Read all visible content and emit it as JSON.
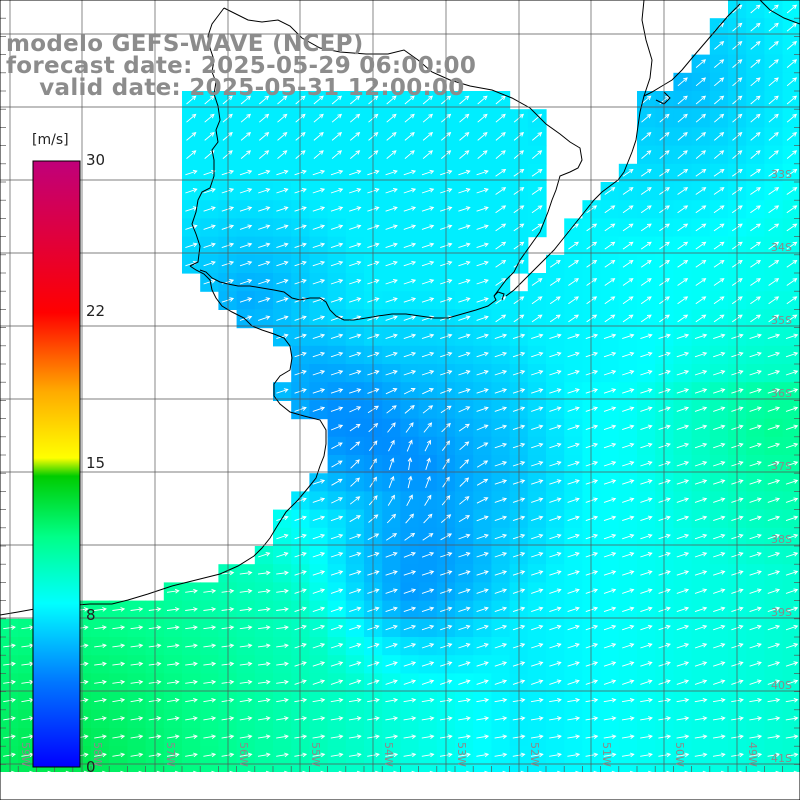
{
  "title": {
    "model": "modelo GEFS-WAVE (NCEP)",
    "forecast": "forecast date: 2025-05-29 06:00:00",
    "valid": "    valid date: 2025-05-31 12:00:00"
  },
  "colorbar": {
    "unit": "[m/s]",
    "ticks": [
      {
        "value": 30,
        "label": "30"
      },
      {
        "value": 22,
        "label": "22"
      },
      {
        "value": 15,
        "label": "15"
      },
      {
        "value": 8,
        "label": "8"
      },
      {
        "value": 0,
        "label": "0"
      }
    ],
    "min": 0,
    "max": 30,
    "colors": [
      "#0000ff",
      "#0088ff",
      "#00ffff",
      "#00ff00",
      "#ffff00",
      "#ff8800",
      "#ff0000",
      "#c8007a"
    ]
  },
  "map": {
    "lat_labels": [
      "33S",
      "34S",
      "35S",
      "36S",
      "37S",
      "38S",
      "39S",
      "40S",
      "41S"
    ],
    "lon_labels": [
      "59W",
      "58W",
      "57W",
      "56W",
      "55W",
      "54W",
      "53W",
      "52W",
      "51W",
      "50W",
      "49W"
    ],
    "colors": {
      "land": "#ffffff",
      "coast": "#000000",
      "grid": "#555555",
      "arrow": "#ffffff",
      "title": "#8c8c8c"
    },
    "arrow_direction": "predominantly toward east, northeast near Rio de la Plata mouth"
  }
}
